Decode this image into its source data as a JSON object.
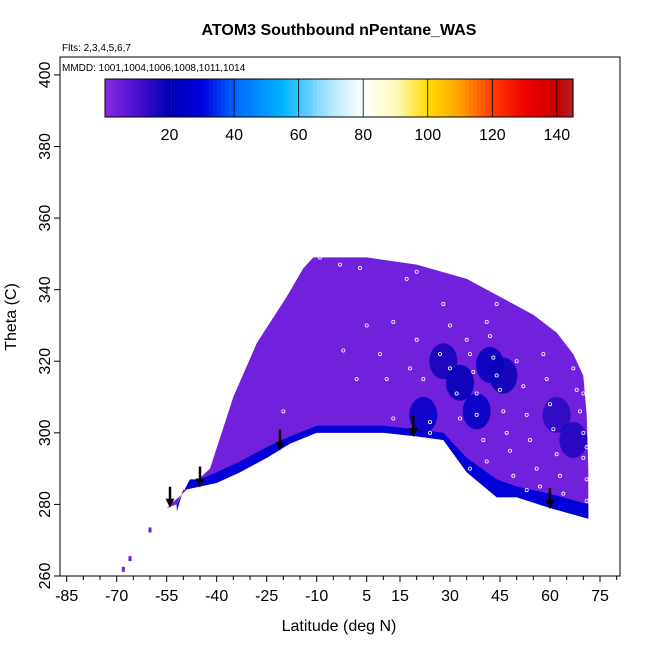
{
  "chart_data": {
    "type": "heatmap",
    "title": "ATOM3 Southbound nPentane_WAS",
    "flights_note": "Flts: 2,3,4,5,6,7",
    "dates_note": "MMDD: 1001,1004,1006,1008,1011,1014",
    "xlabel": "Latitude (deg N)",
    "ylabel": "Theta (C)",
    "xlim": [
      -87,
      81
    ],
    "ylim": [
      260,
      405
    ],
    "x_ticks": [
      -85,
      -70,
      -55,
      -40,
      -25,
      -10,
      5,
      15,
      30,
      45,
      60,
      75
    ],
    "x_minor_ticks": [
      -80,
      -75,
      -65,
      -60,
      -50,
      -45,
      -35,
      -30,
      -20,
      -15,
      -5,
      0,
      10,
      20,
      25,
      35,
      40,
      50,
      55,
      65,
      70,
      80
    ],
    "y_ticks": [
      260,
      280,
      300,
      320,
      340,
      360,
      380,
      400
    ],
    "colorbar": {
      "range": [
        0,
        145
      ],
      "ticks": [
        20,
        40,
        60,
        80,
        100,
        120,
        140
      ],
      "stops": [
        {
          "v": 0,
          "c": "#8a2be2"
        },
        {
          "v": 10,
          "c": "#4b0fd0"
        },
        {
          "v": 20,
          "c": "#0000b4"
        },
        {
          "v": 30,
          "c": "#0000e0"
        },
        {
          "v": 40,
          "c": "#0066ff"
        },
        {
          "v": 55,
          "c": "#00b4ff"
        },
        {
          "v": 70,
          "c": "#b4e6ff"
        },
        {
          "v": 80,
          "c": "#ffffff"
        },
        {
          "v": 90,
          "c": "#fffabe"
        },
        {
          "v": 100,
          "c": "#ffdc00"
        },
        {
          "v": 110,
          "c": "#ffa000"
        },
        {
          "v": 120,
          "c": "#ff3c00"
        },
        {
          "v": 130,
          "c": "#f00000"
        },
        {
          "v": 140,
          "c": "#c80000"
        },
        {
          "v": 145,
          "c": "#b22222"
        }
      ]
    },
    "field_outline": [
      [
        -55,
        279
      ],
      [
        -42,
        290
      ],
      [
        -35,
        310
      ],
      [
        -28,
        325
      ],
      [
        -19,
        338
      ],
      [
        -14,
        346
      ],
      [
        -11,
        349
      ],
      [
        5,
        349
      ],
      [
        20,
        347
      ],
      [
        35,
        343
      ],
      [
        45,
        338
      ],
      [
        55,
        333
      ],
      [
        62,
        328
      ],
      [
        67,
        322
      ],
      [
        70,
        316
      ],
      [
        71,
        305
      ],
      [
        71.5,
        290
      ],
      [
        71.5,
        276
      ],
      [
        60,
        279
      ],
      [
        50,
        282
      ],
      [
        44,
        282
      ],
      [
        35,
        289
      ],
      [
        28,
        298
      ],
      [
        20,
        299
      ],
      [
        10,
        300
      ],
      [
        3,
        300
      ],
      [
        -10,
        300
      ],
      [
        -18,
        297
      ],
      [
        -25,
        293
      ],
      [
        -33,
        289
      ],
      [
        -40,
        286
      ],
      [
        -45,
        285
      ],
      [
        -50,
        284
      ],
      [
        -52,
        280
      ]
    ],
    "blue_edge_band": [
      [
        -52,
        280
      ],
      [
        -48,
        287
      ],
      [
        -45,
        287
      ],
      [
        -40,
        289
      ],
      [
        -33,
        292
      ],
      [
        -25,
        296
      ],
      [
        -18,
        299
      ],
      [
        -10,
        302
      ],
      [
        3,
        302
      ],
      [
        10,
        302
      ],
      [
        20,
        301
      ],
      [
        28,
        300
      ],
      [
        35,
        293
      ],
      [
        44,
        287
      ],
      [
        50,
        285
      ],
      [
        60,
        283
      ],
      [
        71.5,
        280
      ],
      [
        71.5,
        276
      ],
      [
        60,
        279
      ],
      [
        50,
        282
      ],
      [
        44,
        282
      ],
      [
        35,
        289
      ],
      [
        28,
        298
      ],
      [
        20,
        299
      ],
      [
        10,
        300
      ],
      [
        3,
        300
      ],
      [
        -10,
        300
      ],
      [
        -18,
        297
      ],
      [
        -25,
        293
      ],
      [
        -33,
        289
      ],
      [
        -40,
        286
      ],
      [
        -45,
        285
      ],
      [
        -50,
        284
      ],
      [
        -52,
        278
      ]
    ],
    "dark_patches": [
      {
        "lat": 28,
        "theta": 320,
        "value": 18
      },
      {
        "lat": 33,
        "theta": 314,
        "value": 20
      },
      {
        "lat": 42,
        "theta": 319,
        "value": 22
      },
      {
        "lat": 46,
        "theta": 316,
        "value": 19
      },
      {
        "lat": 38,
        "theta": 306,
        "value": 24
      },
      {
        "lat": 62,
        "theta": 305,
        "value": 15
      },
      {
        "lat": 67,
        "theta": 298,
        "value": 16
      },
      {
        "lat": 22,
        "theta": 305,
        "value": 25
      }
    ],
    "stray_cells": [
      {
        "lat": -68,
        "theta": 262,
        "value": 5
      },
      {
        "lat": -66,
        "theta": 265,
        "value": 5
      },
      {
        "lat": -60,
        "theta": 273,
        "value": 5
      }
    ],
    "samples": [
      [
        -20,
        306
      ],
      [
        -9,
        349
      ],
      [
        -3,
        347
      ],
      [
        3,
        346
      ],
      [
        -2,
        323
      ],
      [
        2,
        315
      ],
      [
        5,
        330
      ],
      [
        -6,
        299
      ],
      [
        9,
        322
      ],
      [
        11,
        315
      ],
      [
        13,
        304
      ],
      [
        17,
        343
      ],
      [
        20,
        345
      ],
      [
        13,
        331
      ],
      [
        20,
        326
      ],
      [
        18,
        318
      ],
      [
        22,
        315
      ],
      [
        24,
        303
      ],
      [
        24,
        300
      ],
      [
        27,
        297
      ],
      [
        28,
        336
      ],
      [
        30,
        330
      ],
      [
        27,
        322
      ],
      [
        30,
        318
      ],
      [
        32,
        311
      ],
      [
        33,
        304
      ],
      [
        35,
        326
      ],
      [
        36,
        322
      ],
      [
        37,
        317
      ],
      [
        38,
        311
      ],
      [
        38,
        305
      ],
      [
        40,
        298
      ],
      [
        41,
        292
      ],
      [
        42,
        327
      ],
      [
        43,
        321
      ],
      [
        44,
        316
      ],
      [
        45,
        312
      ],
      [
        46,
        306
      ],
      [
        47,
        300
      ],
      [
        48,
        295
      ],
      [
        49,
        288
      ],
      [
        50,
        320
      ],
      [
        52,
        313
      ],
      [
        53,
        305
      ],
      [
        54,
        298
      ],
      [
        56,
        290
      ],
      [
        57,
        285
      ],
      [
        58,
        322
      ],
      [
        59,
        315
      ],
      [
        60,
        308
      ],
      [
        61,
        301
      ],
      [
        62,
        294
      ],
      [
        63,
        288
      ],
      [
        64,
        283
      ],
      [
        65,
        330
      ],
      [
        66,
        325
      ],
      [
        67,
        318
      ],
      [
        68,
        312
      ],
      [
        69,
        306
      ],
      [
        70,
        300
      ],
      [
        70,
        293
      ],
      [
        71,
        287
      ],
      [
        71,
        281
      ],
      [
        44,
        336
      ],
      [
        50,
        339
      ],
      [
        55,
        334
      ],
      [
        36,
        290
      ],
      [
        31,
        289
      ],
      [
        53,
        284
      ],
      [
        70,
        311
      ],
      [
        71,
        296
      ],
      [
        41,
        331
      ]
    ],
    "arrows_lat": [
      -54,
      -45,
      -21,
      19,
      60
    ]
  }
}
